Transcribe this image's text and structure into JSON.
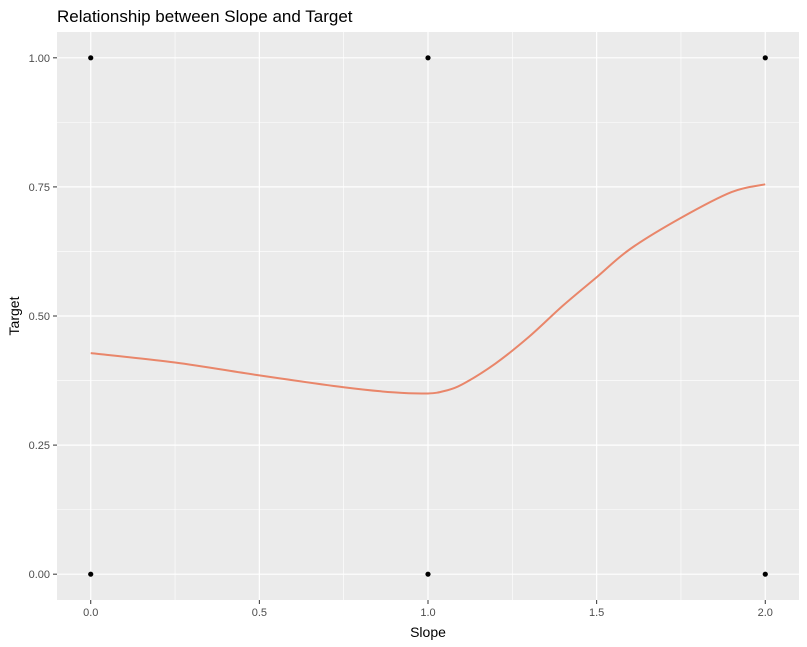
{
  "chart_data": {
    "type": "scatter",
    "title": "Relationship between Slope and Target",
    "xlabel": "Slope",
    "ylabel": "Target",
    "xlim": [
      -0.1,
      2.1
    ],
    "ylim": [
      -0.05,
      1.05
    ],
    "x_ticks": [
      0.0,
      0.5,
      1.0,
      1.5,
      2.0
    ],
    "x_tick_labels": [
      "0.0",
      "0.5",
      "1.0",
      "1.5",
      "2.0"
    ],
    "y_ticks": [
      0.0,
      0.25,
      0.5,
      0.75,
      1.0
    ],
    "y_tick_labels": [
      "0.00",
      "0.25",
      "0.50",
      "0.75",
      "1.00"
    ],
    "grid": true,
    "series": [
      {
        "name": "observations",
        "kind": "points",
        "color": "#000000",
        "x": [
          0,
          1,
          2,
          0,
          1,
          2
        ],
        "y": [
          1,
          1,
          1,
          0,
          0,
          0
        ]
      },
      {
        "name": "smooth",
        "kind": "line",
        "color": "#E9866A",
        "x": [
          0.0,
          0.25,
          0.5,
          0.75,
          0.9,
          1.0,
          1.05,
          1.1,
          1.2,
          1.3,
          1.4,
          1.5,
          1.6,
          1.75,
          1.9,
          2.0
        ],
        "y": [
          0.428,
          0.41,
          0.385,
          0.362,
          0.352,
          0.35,
          0.355,
          0.367,
          0.408,
          0.46,
          0.52,
          0.575,
          0.63,
          0.69,
          0.74,
          0.755
        ]
      }
    ]
  }
}
